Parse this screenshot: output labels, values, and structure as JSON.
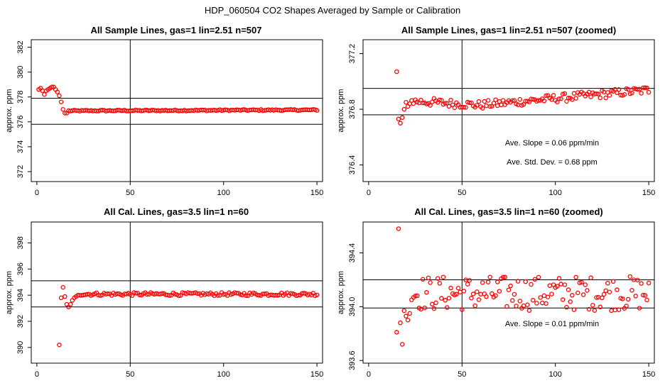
{
  "page_title": "HDP_060504  CO2 Shapes Averaged by Sample or Calibration",
  "colors": {
    "points": "#ff0000",
    "axes": "#000000",
    "background": "#ffffff"
  },
  "chart_data": [
    {
      "type": "scatter",
      "title": "All Sample Lines, gas=1 lin=2.51 n=507",
      "xlabel": "",
      "ylabel": "approx. ppm",
      "xlim": [
        -3,
        153
      ],
      "ylim": [
        371.2,
        382.6
      ],
      "xticks": [
        0,
        50,
        100,
        150
      ],
      "yticks": [
        372,
        374,
        376,
        378,
        380,
        382
      ],
      "vline": 50,
      "hlines": [
        377.9,
        375.8
      ],
      "annotations": [],
      "series": [
        {
          "x": [],
          "y": []
        }
      ]
    },
    {
      "type": "scatter",
      "title": "All Sample Lines, gas=1 lin=2.51 n=507 (zoomed)",
      "xlabel": "",
      "ylabel": "approx. ppm",
      "xlim": [
        -3,
        153
      ],
      "ylim": [
        376.28,
        377.3
      ],
      "xticks": [
        0,
        50,
        100,
        150
      ],
      "yticks": [
        376.4,
        376.8,
        377.2
      ],
      "ytick_labels": [
        "376.4",
        "376.8",
        "377.2"
      ],
      "vline": 50,
      "hlines": [
        376.95,
        376.76
      ],
      "annotations": [
        "Ave. Slope =  0.06  ppm/min",
        "Ave. Std. Dev. =  0.68  ppm"
      ],
      "series": [
        {
          "x": [],
          "y": []
        }
      ]
    },
    {
      "type": "scatter",
      "title": "All Cal. Lines, gas=3.5 lin=1 n=60",
      "xlabel": "",
      "ylabel": "approx. ppm",
      "xlim": [
        -3,
        153
      ],
      "ylim": [
        388.8,
        399.6
      ],
      "xticks": [
        0,
        50,
        100,
        150
      ],
      "yticks": [
        390,
        392,
        394,
        396,
        398
      ],
      "vline": 50,
      "hlines": [
        395.1,
        393.1
      ],
      "annotations": [],
      "series": [
        {
          "x": [],
          "y": []
        }
      ]
    },
    {
      "type": "scatter",
      "title": "All Cal. Lines, gas=3.5 lin=1 n=60 (zoomed)",
      "xlabel": "",
      "ylabel": "approx. ppm",
      "xlim": [
        -3,
        153
      ],
      "ylim": [
        393.58,
        394.63
      ],
      "xticks": [
        0,
        50,
        100,
        150
      ],
      "yticks": [
        393.6,
        394.0,
        394.4
      ],
      "ytick_labels": [
        "393.6",
        "394.0",
        "394.4"
      ],
      "vline": 50,
      "hlines": [
        394.2,
        393.99
      ],
      "annotations": [
        "Ave. Slope =  0.01  ppm/min"
      ],
      "series": [
        {
          "x": [],
          "y": []
        }
      ]
    }
  ]
}
